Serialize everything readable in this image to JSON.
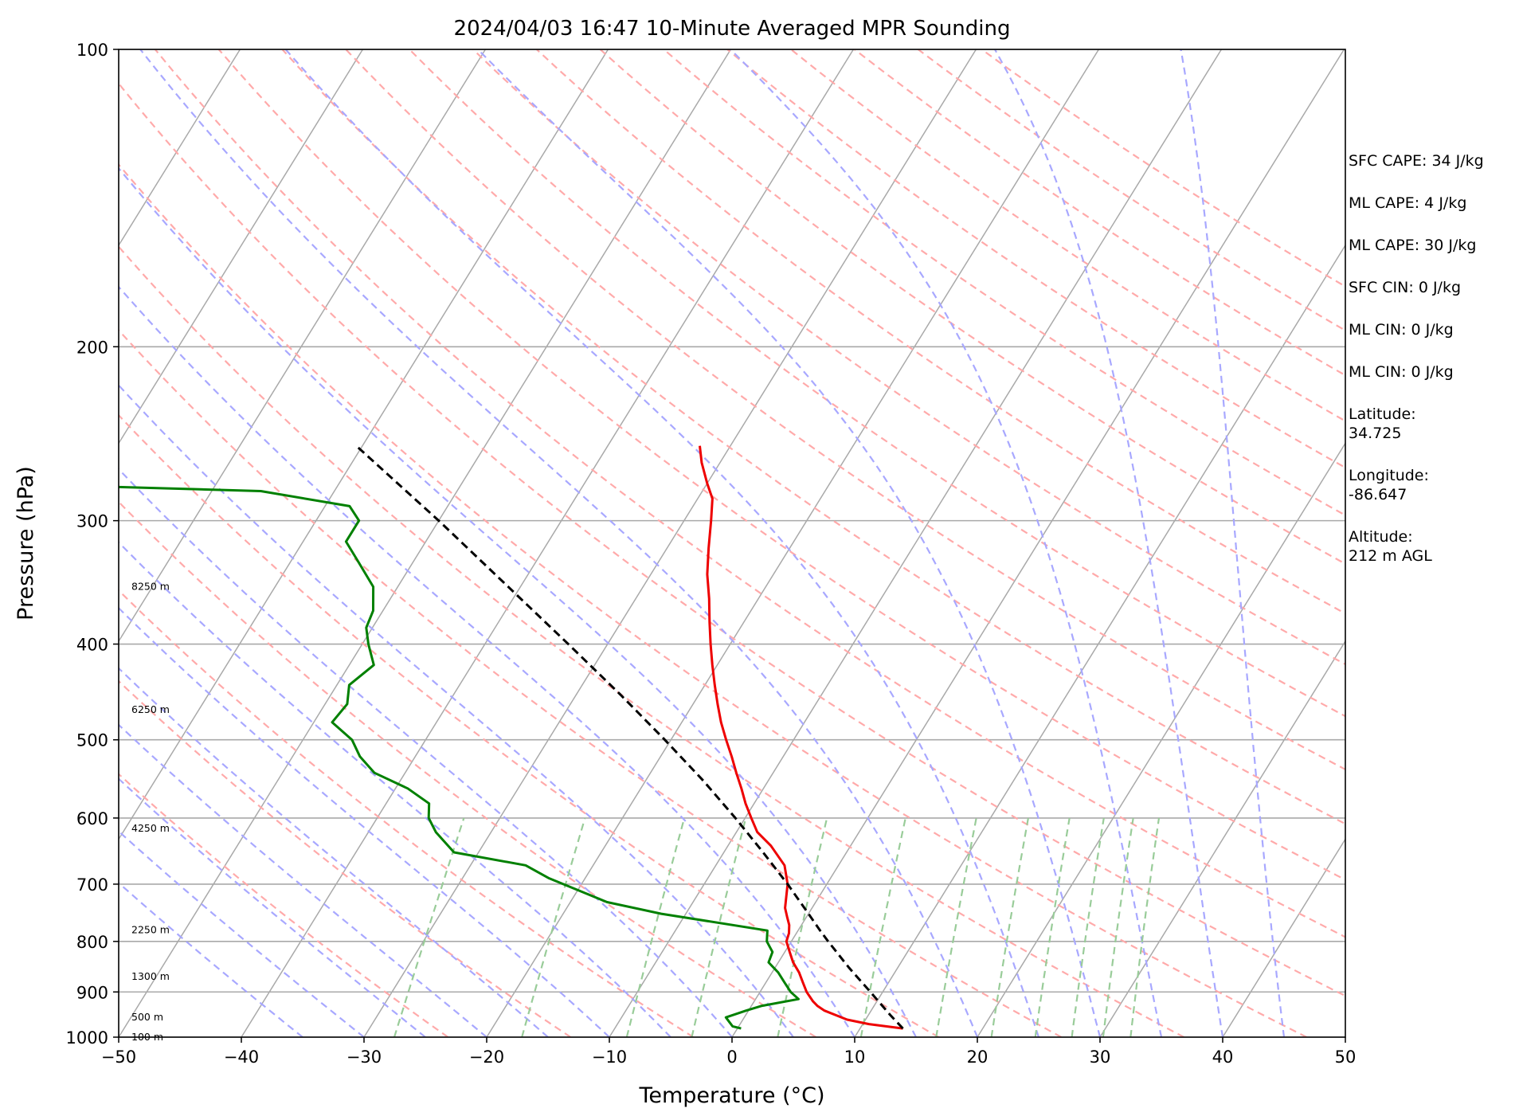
{
  "chart_data": {
    "type": "line",
    "title": "2024/04/03 16:47 10-Minute Averaged MPR Sounding",
    "xlabel": "Temperature (°C)",
    "ylabel": "Pressure (hPa)",
    "xlim": [
      -50,
      50
    ],
    "ylim": [
      1000,
      100
    ],
    "y_scale": "log",
    "skew": "skew-T log-p",
    "grid": true,
    "x_ticks": [
      -50,
      -40,
      -30,
      -20,
      -10,
      0,
      10,
      20,
      30,
      40,
      50
    ],
    "x_tick_labels": [
      "−50",
      "−40",
      "−30",
      "−20",
      "−10",
      "0",
      "10",
      "20",
      "30",
      "40",
      "50"
    ],
    "y_ticks": [
      1000,
      900,
      800,
      700,
      600,
      500,
      400,
      300,
      200,
      100
    ],
    "y_tick_labels": [
      "1000",
      "900",
      "800",
      "700",
      "600",
      "500",
      "400",
      "300",
      "200",
      "100"
    ],
    "colors": {
      "temperature": "#ee0000",
      "dewpoint": "#008000",
      "parcel": "#000000",
      "isotherm": "#a9a9a9",
      "dry_adiabat": "#ffaaaa",
      "moist_adiabat": "#a8a8ff",
      "mixing_ratio": "#99cc99",
      "isobar": "#a9a9a9"
    },
    "series": [
      {
        "key": "temperature",
        "style": "solid",
        "points": [
          [
            980,
            13.5
          ],
          [
            970,
            10.5
          ],
          [
            960,
            8.5
          ],
          [
            940,
            6.2
          ],
          [
            930,
            5.4
          ],
          [
            920,
            4.8
          ],
          [
            900,
            3.8
          ],
          [
            880,
            3.0
          ],
          [
            860,
            2.2
          ],
          [
            840,
            1.2
          ],
          [
            820,
            0.4
          ],
          [
            800,
            -0.4
          ],
          [
            785,
            -0.6
          ],
          [
            770,
            -1.0
          ],
          [
            755,
            -1.6
          ],
          [
            740,
            -2.2
          ],
          [
            700,
            -3.2
          ],
          [
            670,
            -4.4
          ],
          [
            640,
            -6.5
          ],
          [
            620,
            -8.3
          ],
          [
            600,
            -9.5
          ],
          [
            580,
            -10.7
          ],
          [
            560,
            -11.8
          ],
          [
            540,
            -13.0
          ],
          [
            520,
            -14.2
          ],
          [
            500,
            -15.5
          ],
          [
            480,
            -16.8
          ],
          [
            460,
            -18.0
          ],
          [
            440,
            -19.2
          ],
          [
            420,
            -20.4
          ],
          [
            400,
            -21.6
          ],
          [
            380,
            -22.8
          ],
          [
            360,
            -24.0
          ],
          [
            340,
            -25.4
          ],
          [
            320,
            -26.6
          ],
          [
            300,
            -27.8
          ],
          [
            285,
            -28.8
          ],
          [
            275,
            -30.0
          ],
          [
            262,
            -31.5
          ],
          [
            252,
            -32.5
          ]
        ]
      },
      {
        "key": "dewpoint",
        "style": "solid",
        "points": [
          [
            980,
            0.3
          ],
          [
            975,
            -0.5
          ],
          [
            965,
            -1.0
          ],
          [
            955,
            -1.5
          ],
          [
            940,
            -0.2
          ],
          [
            930,
            0.8
          ],
          [
            915,
            3.5
          ],
          [
            900,
            2.5
          ],
          [
            880,
            1.5
          ],
          [
            860,
            0.5
          ],
          [
            840,
            -0.8
          ],
          [
            820,
            -1.0
          ],
          [
            800,
            -2.0
          ],
          [
            780,
            -2.5
          ],
          [
            750,
            -12.0
          ],
          [
            730,
            -17.0
          ],
          [
            690,
            -23.0
          ],
          [
            670,
            -25.5
          ],
          [
            650,
            -32.0
          ],
          [
            620,
            -34.5
          ],
          [
            600,
            -35.8
          ],
          [
            580,
            -36.5
          ],
          [
            560,
            -39.0
          ],
          [
            540,
            -42.5
          ],
          [
            520,
            -44.5
          ],
          [
            500,
            -46.0
          ],
          [
            480,
            -48.5
          ],
          [
            460,
            -48.2
          ],
          [
            440,
            -49.0
          ],
          [
            420,
            -48.0
          ],
          [
            400,
            -49.5
          ],
          [
            385,
            -50.5
          ],
          [
            370,
            -50.8
          ],
          [
            350,
            -52.0
          ],
          [
            330,
            -54.5
          ],
          [
            315,
            -56.5
          ],
          [
            300,
            -56.5
          ],
          [
            290,
            -58.0
          ],
          [
            280,
            -66.0
          ],
          [
            276,
            -84.0
          ]
        ]
      },
      {
        "key": "parcel",
        "style": "dashed",
        "points": [
          [
            980,
            13.5
          ],
          [
            950,
            11.8
          ],
          [
            900,
            9.0
          ],
          [
            850,
            6.0
          ],
          [
            800,
            3.0
          ],
          [
            780,
            1.8
          ],
          [
            750,
            0.0
          ],
          [
            700,
            -3.2
          ],
          [
            650,
            -6.8
          ],
          [
            600,
            -10.8
          ],
          [
            550,
            -15.3
          ],
          [
            500,
            -20.5
          ],
          [
            450,
            -26.4
          ],
          [
            400,
            -33.2
          ],
          [
            350,
            -41.0
          ],
          [
            300,
            -50.0
          ],
          [
            252,
            -60.5
          ]
        ]
      }
    ],
    "height_labels": [
      {
        "pressure": 1000,
        "label": "100 m"
      },
      {
        "pressure": 955,
        "label": "500 m"
      },
      {
        "pressure": 868,
        "label": "1300 m"
      },
      {
        "pressure": 779,
        "label": "2250 m"
      },
      {
        "pressure": 615,
        "label": "4250 m"
      },
      {
        "pressure": 466,
        "label": "6250 m"
      },
      {
        "pressure": 350,
        "label": "8250 m"
      }
    ],
    "annotations": [
      "SFC CAPE: 34 J/kg",
      "ML CAPE: 4 J/kg",
      "ML CAPE: 30 J/kg",
      "SFC CIN: 0 J/kg",
      "ML CIN: 0 J/kg",
      "ML CIN: 0 J/kg",
      "Latitude:\n34.725",
      "Longitude:\n-86.647",
      "Altitude:\n212 m AGL"
    ]
  }
}
